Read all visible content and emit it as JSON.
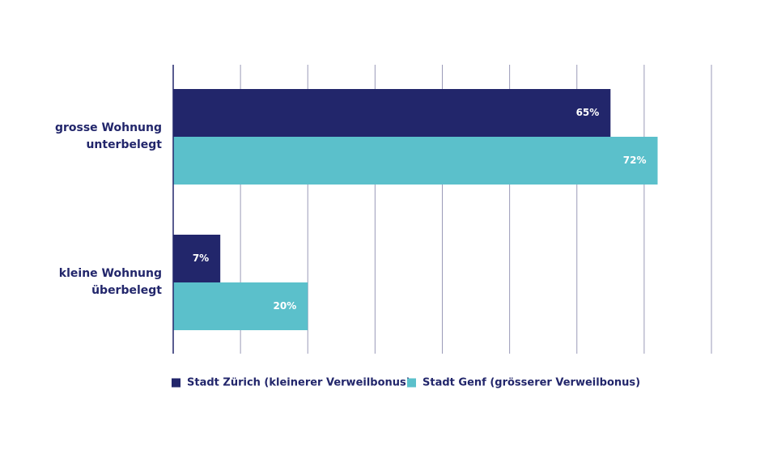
{
  "chart_data": {
    "type": "bar",
    "orientation": "horizontal",
    "categories": [
      "grosse Wohnung unterbelegt",
      "kleine Wohnung überbelegt"
    ],
    "series": [
      {
        "name": "Stadt Zürich (kleinerer Verweilbonus)",
        "color": "#22266b",
        "values": [
          65,
          7
        ],
        "value_labels": [
          "65%",
          "7%"
        ]
      },
      {
        "name": "Stadt Genf (grösserer Verweilbonus)",
        "color": "#5bc0cb",
        "values": [
          72,
          20
        ],
        "value_labels": [
          "72%",
          "20%"
        ]
      }
    ],
    "xlim": [
      0,
      80
    ],
    "xticks": [
      0,
      10,
      20,
      30,
      40,
      50,
      60,
      70,
      80
    ],
    "grid": true,
    "legend": "bottom"
  }
}
